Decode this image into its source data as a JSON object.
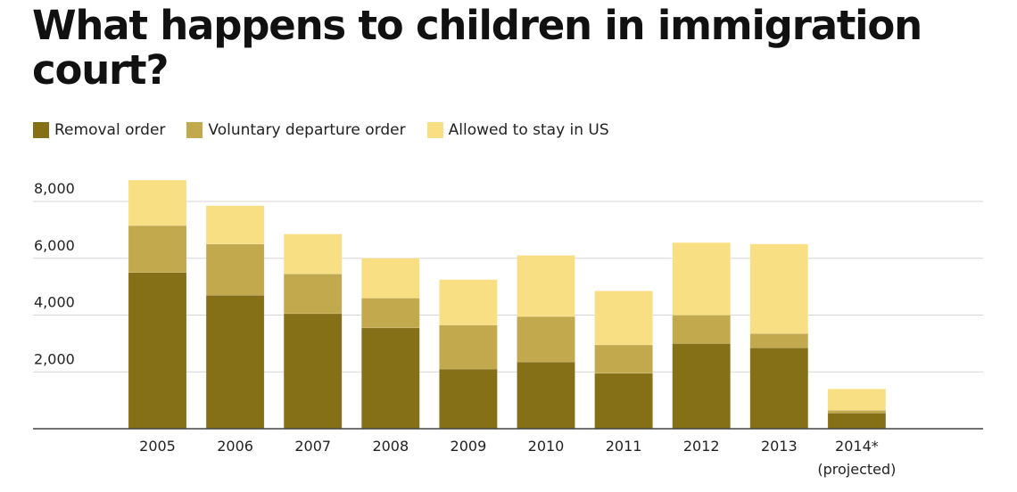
{
  "title": "What happens to children in immigration court?",
  "colors": {
    "removal": "#857018",
    "voluntary": "#c3a94e",
    "allowed": "#f9df83",
    "grid": "#d6d6d6",
    "axis": "#444444"
  },
  "chart_data": {
    "type": "bar",
    "stacked": true,
    "title": "What happens to children in immigration court?",
    "categories": [
      "2005",
      "2006",
      "2007",
      "2008",
      "2009",
      "2010",
      "2011",
      "2012",
      "2013",
      "2014*"
    ],
    "category_sublabels": [
      "",
      "",
      "",
      "",
      "",
      "",
      "",
      "",
      "",
      "(projected)"
    ],
    "series": [
      {
        "name": "Removal order",
        "values": [
          5500,
          4700,
          4050,
          3550,
          2100,
          2350,
          1950,
          3000,
          2850,
          550
        ]
      },
      {
        "name": "Voluntary departure order",
        "values": [
          1650,
          1800,
          1400,
          1050,
          1550,
          1600,
          1000,
          1000,
          500,
          100
        ]
      },
      {
        "name": "Allowed to stay in US",
        "values": [
          1600,
          1350,
          1400,
          1400,
          1600,
          2150,
          1900,
          2550,
          3150,
          750
        ]
      }
    ],
    "yticks": [
      "2,000",
      "4,000",
      "6,000",
      "8,000"
    ],
    "ylim": [
      0,
      8000
    ],
    "grid": true,
    "legend": "top-left"
  }
}
